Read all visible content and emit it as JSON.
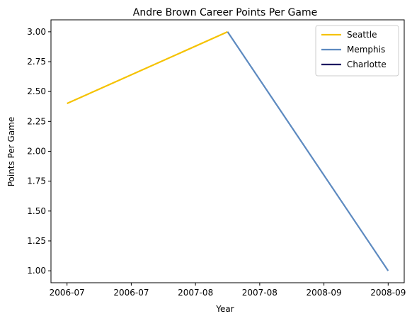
{
  "chart_data": {
    "type": "line",
    "title": "Andre Brown  Career Points Per Game",
    "xlabel": "Year",
    "ylabel": "Points Per Game",
    "x_tick_labels": [
      "2006-07",
      "2006-07",
      "2007-08",
      "2007-08",
      "2008-09",
      "2008-09"
    ],
    "x_tick_positions": [
      0,
      1,
      2,
      3,
      4,
      5
    ],
    "xlim": [
      -0.25,
      5.25
    ],
    "ylim": [
      0.9,
      3.1
    ],
    "y_ticks": [
      1.0,
      1.25,
      1.5,
      1.75,
      2.0,
      2.25,
      2.5,
      2.75,
      3.0
    ],
    "y_tick_labels": [
      "1.00",
      "1.25",
      "1.50",
      "1.75",
      "2.00",
      "2.25",
      "2.50",
      "2.75",
      "3.00"
    ],
    "grid": false,
    "legend_position": "top-right",
    "series": [
      {
        "name": "Seattle",
        "color": "#F5C200",
        "x": [
          0,
          2.5
        ],
        "y": [
          2.4,
          3.0
        ]
      },
      {
        "name": "Memphis",
        "color": "#5D8AC0",
        "x": [
          2.5,
          5
        ],
        "y": [
          3.0,
          1.0
        ]
      },
      {
        "name": "Charlotte",
        "color": "#1D1160",
        "x": [],
        "y": []
      }
    ]
  }
}
